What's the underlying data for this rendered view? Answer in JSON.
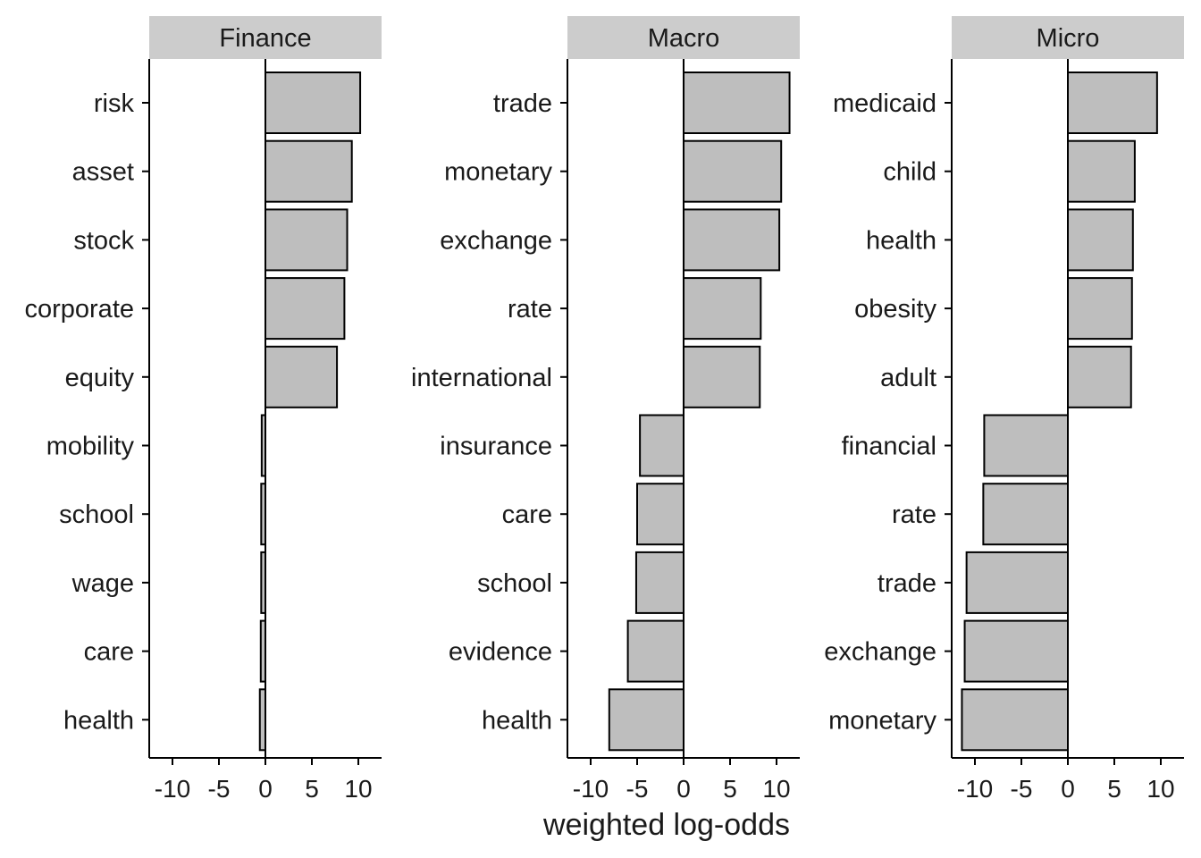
{
  "chart_data": {
    "type": "bar",
    "orientation": "horizontal",
    "xlabel": "weighted log-odds",
    "xlim": [
      -12.5,
      12.5
    ],
    "xticks": [
      -10,
      -5,
      0,
      5,
      10
    ],
    "xtick_labels": [
      "-10",
      "-5",
      "0",
      "5",
      "10"
    ],
    "grid": false,
    "legend": "none",
    "bar_fill": "#bebebe",
    "strip_fill": "#cccccc",
    "facets": [
      {
        "name": "Finance",
        "categories": [
          "risk",
          "asset",
          "stock",
          "corporate",
          "equity",
          "mobility",
          "school",
          "wage",
          "care",
          "health"
        ],
        "values": [
          10.2,
          9.3,
          8.8,
          8.5,
          7.7,
          -0.4,
          -0.45,
          -0.45,
          -0.5,
          -0.6
        ]
      },
      {
        "name": "Macro",
        "categories": [
          "trade",
          "monetary",
          "exchange",
          "rate",
          "international",
          "insurance",
          "care",
          "school",
          "evidence",
          "health"
        ],
        "values": [
          11.4,
          10.5,
          10.3,
          8.3,
          8.2,
          -4.7,
          -5.0,
          -5.1,
          -6.0,
          -8.0
        ]
      },
      {
        "name": "Micro",
        "categories": [
          "medicaid",
          "child",
          "health",
          "obesity",
          "adult",
          "financial",
          "rate",
          "trade",
          "exchange",
          "monetary"
        ],
        "values": [
          9.6,
          7.2,
          7.0,
          6.9,
          6.8,
          -9.0,
          -9.1,
          -10.9,
          -11.1,
          -11.4
        ]
      }
    ]
  }
}
